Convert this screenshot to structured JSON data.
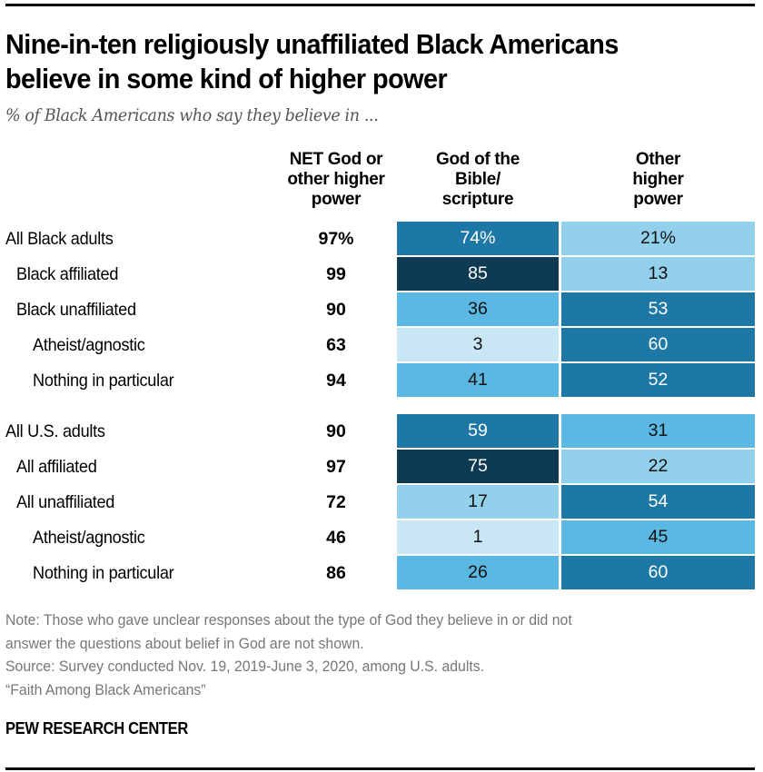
{
  "title": "Nine-in-ten religiously unaffiliated Black Americans believe in some kind of higher power",
  "title_lines": [
    "Nine-in-ten religiously unaffiliated Black Americans",
    "believe in some kind of higher power"
  ],
  "subtitle": "% of Black Americans who say they believe in ...",
  "colors": {
    "darkest": "#0f3b52",
    "dark": "#1d78a6",
    "medium": "#5ab8e2",
    "light": "#93d0ec",
    "lightest": "#c9e6f5"
  },
  "chart_data": {
    "type": "table",
    "title": "Nine-in-ten religiously unaffiliated Black Americans believe in some kind of higher power",
    "subtitle": "% of Black Americans who say they believe in ...",
    "columns": [
      "NET God or other higher power",
      "God of the Bible/ scripture",
      "Other higher power"
    ],
    "column_header_lines": [
      [
        "NET God or",
        "other higher",
        "power"
      ],
      [
        "God of the",
        "Bible/",
        "scripture"
      ],
      [
        "Other",
        "higher",
        "power"
      ]
    ],
    "rows": [
      {
        "label": "All Black adults",
        "indent": 0,
        "group": 0,
        "net": "97%",
        "bible": "74%",
        "other": "21%",
        "bible_value": 74,
        "other_value": 21,
        "bible_shade": "dark",
        "other_shade": "light"
      },
      {
        "label": "Black affiliated",
        "indent": 1,
        "group": 0,
        "net": "99",
        "bible": "85",
        "other": "13",
        "bible_value": 85,
        "other_value": 13,
        "bible_shade": "darkest",
        "other_shade": "light"
      },
      {
        "label": "Black unaffiliated",
        "indent": 1,
        "group": 0,
        "net": "90",
        "bible": "36",
        "other": "53",
        "bible_value": 36,
        "other_value": 53,
        "bible_shade": "medium",
        "other_shade": "dark"
      },
      {
        "label": "Atheist/agnostic",
        "indent": 2,
        "group": 0,
        "net": "63",
        "bible": "3",
        "other": "60",
        "bible_value": 3,
        "other_value": 60,
        "bible_shade": "lightest",
        "other_shade": "dark"
      },
      {
        "label": "Nothing in particular",
        "indent": 2,
        "group": 0,
        "net": "94",
        "bible": "41",
        "other": "52",
        "bible_value": 41,
        "other_value": 52,
        "bible_shade": "medium",
        "other_shade": "dark"
      },
      {
        "label": "All U.S. adults",
        "indent": 0,
        "group": 1,
        "net": "90",
        "bible": "59",
        "other": "31",
        "bible_value": 59,
        "other_value": 31,
        "bible_shade": "dark",
        "other_shade": "medium"
      },
      {
        "label": "All affiliated",
        "indent": 1,
        "group": 1,
        "net": "97",
        "bible": "75",
        "other": "22",
        "bible_value": 75,
        "other_value": 22,
        "bible_shade": "darkest",
        "other_shade": "light"
      },
      {
        "label": "All unaffiliated",
        "indent": 1,
        "group": 1,
        "net": "72",
        "bible": "17",
        "other": "54",
        "bible_value": 17,
        "other_value": 54,
        "bible_shade": "light",
        "other_shade": "dark"
      },
      {
        "label": "Atheist/agnostic",
        "indent": 2,
        "group": 1,
        "net": "46",
        "bible": "1",
        "other": "45",
        "bible_value": 1,
        "other_value": 45,
        "bible_shade": "lightest",
        "other_shade": "medium"
      },
      {
        "label": "Nothing in particular",
        "indent": 2,
        "group": 1,
        "net": "86",
        "bible": "26",
        "other": "60",
        "bible_value": 26,
        "other_value": 60,
        "bible_shade": "medium",
        "other_shade": "dark"
      }
    ]
  },
  "notes": [
    "Note: Those who gave unclear responses about the type of God they believe in or did not",
    "answer the questions about belief in God are not shown.",
    "Source: Survey conducted Nov. 19, 2019-June 3, 2020, among U.S. adults.",
    "“Faith Among Black Americans”"
  ],
  "brand": "PEW RESEARCH CENTER"
}
